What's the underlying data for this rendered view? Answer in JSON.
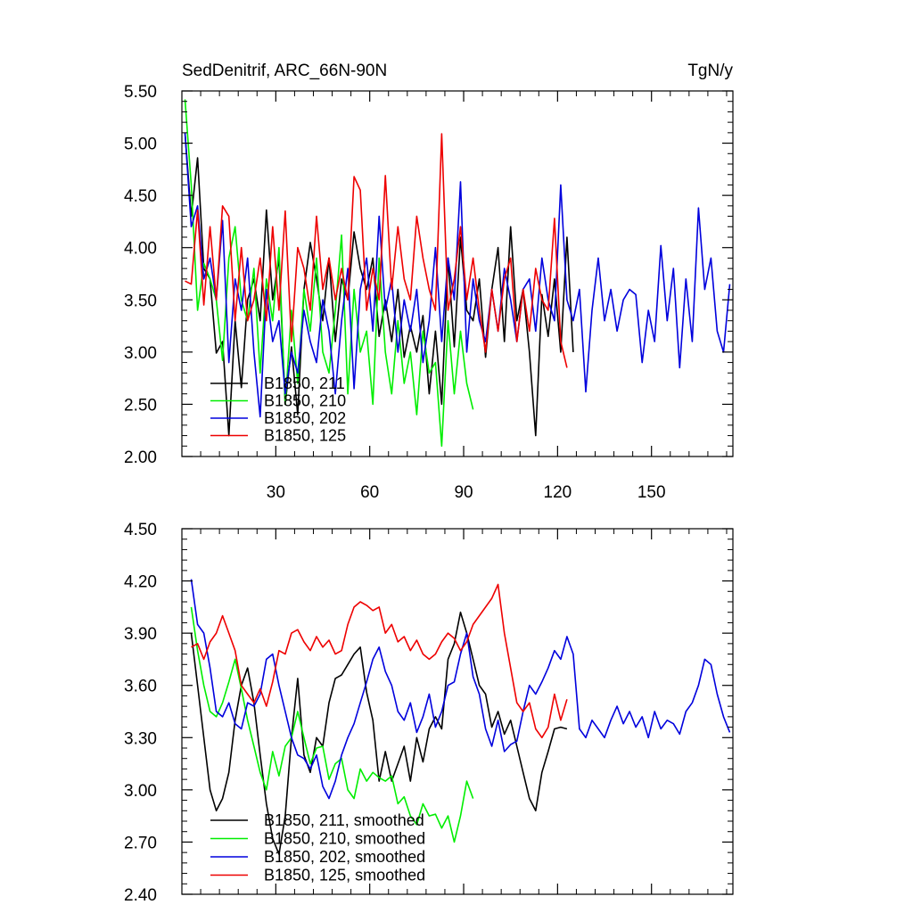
{
  "chart_data": [
    {
      "type": "line",
      "title_left": "SedDenitrif, ARC_66N-90N",
      "title_right": "TgN/y",
      "xlabel": "",
      "ylabel": "",
      "xlim": [
        0,
        176
      ],
      "ylim": [
        2.0,
        5.5
      ],
      "xticks": [
        30,
        60,
        90,
        120,
        150
      ],
      "xtick_labels": [
        "30",
        "60",
        "90",
        "120",
        "150"
      ],
      "yticks": [
        2.0,
        2.5,
        3.0,
        3.5,
        4.0,
        4.5,
        5.0,
        5.5
      ],
      "ytick_labels": [
        "2.00",
        "2.50",
        "3.00",
        "3.50",
        "4.00",
        "4.50",
        "5.00",
        "5.50"
      ],
      "legend_position": "bottom-left",
      "series": [
        {
          "name": "B1850, 211",
          "color": "#000000",
          "x": [
            1,
            3,
            5,
            7,
            9,
            11,
            13,
            15,
            17,
            19,
            21,
            23,
            25,
            27,
            29,
            31,
            33,
            35,
            37,
            39,
            41,
            43,
            45,
            47,
            49,
            51,
            53,
            55,
            57,
            59,
            61,
            63,
            65,
            67,
            69,
            71,
            73,
            75,
            77,
            79,
            81,
            83,
            85,
            87,
            89,
            91,
            93,
            95,
            97,
            99,
            101,
            103,
            105,
            107,
            109,
            111,
            113,
            115,
            117,
            119,
            121,
            123,
            125
          ],
          "y": [
            5.1,
            4.3,
            4.86,
            3.8,
            3.7,
            2.99,
            3.1,
            2.2,
            3.3,
            2.66,
            3.5,
            3.7,
            3.3,
            4.36,
            3.5,
            3.9,
            2.5,
            3.05,
            2.4,
            3.6,
            4.05,
            3.7,
            3.3,
            3.9,
            3.1,
            3.7,
            3.5,
            4.15,
            3.8,
            3.6,
            3.9,
            3.15,
            3.5,
            3.1,
            3.6,
            2.95,
            3.25,
            3.0,
            3.35,
            2.6,
            3.2,
            2.5,
            3.9,
            3.05,
            4.1,
            3.4,
            3.3,
            3.7,
            2.95,
            3.6,
            4.0,
            3.1,
            4.2,
            3.3,
            3.6,
            3.0,
            2.2,
            3.55,
            3.15,
            3.7,
            3.0,
            4.1,
            3.0
          ]
        },
        {
          "name": "B1850, 210",
          "color": "#00ee00",
          "x": [
            1,
            3,
            5,
            7,
            9,
            11,
            13,
            15,
            17,
            19,
            21,
            23,
            25,
            27,
            29,
            31,
            33,
            35,
            37,
            39,
            41,
            43,
            45,
            47,
            49,
            51,
            53,
            55,
            57,
            59,
            61,
            63,
            65,
            67,
            69,
            71,
            73,
            75,
            77,
            79,
            81,
            83,
            85,
            87,
            89,
            91,
            93
          ],
          "y": [
            5.42,
            4.6,
            3.4,
            3.85,
            3.7,
            3.5,
            2.92,
            3.9,
            4.2,
            3.5,
            3.3,
            3.8,
            2.8,
            3.7,
            3.3,
            4.0,
            2.5,
            3.4,
            2.7,
            3.6,
            3.2,
            3.9,
            3.0,
            2.8,
            3.4,
            4.12,
            2.6,
            3.6,
            3.0,
            3.2,
            2.5,
            3.9,
            3.0,
            2.6,
            3.3,
            2.7,
            3.0,
            2.4,
            3.2,
            2.8,
            2.9,
            2.1,
            3.3,
            2.6,
            3.2,
            2.7,
            2.45
          ]
        },
        {
          "name": "B1850, 202",
          "color": "#0000dd",
          "x": [
            1,
            3,
            5,
            7,
            9,
            11,
            13,
            15,
            17,
            19,
            21,
            23,
            25,
            27,
            29,
            31,
            33,
            35,
            37,
            39,
            41,
            43,
            45,
            47,
            49,
            51,
            53,
            55,
            57,
            59,
            61,
            63,
            65,
            67,
            69,
            71,
            73,
            75,
            77,
            79,
            81,
            83,
            85,
            87,
            89,
            91,
            93,
            95,
            97,
            99,
            101,
            103,
            105,
            107,
            109,
            111,
            113,
            115,
            117,
            119,
            121,
            123,
            125,
            127,
            129,
            131,
            133,
            135,
            137,
            139,
            141,
            143,
            145,
            147,
            149,
            151,
            153,
            155,
            157,
            159,
            161,
            163,
            165,
            167,
            169,
            171,
            173,
            175
          ],
          "y": [
            5.1,
            4.2,
            4.4,
            3.7,
            3.9,
            3.5,
            4.26,
            2.9,
            3.7,
            3.4,
            3.9,
            3.0,
            2.38,
            3.6,
            3.1,
            3.3,
            2.6,
            3.0,
            2.8,
            3.4,
            3.1,
            2.9,
            3.5,
            3.2,
            2.6,
            3.3,
            3.8,
            2.65,
            3.6,
            3.9,
            3.2,
            4.3,
            3.4,
            3.7,
            3.0,
            3.5,
            3.2,
            3.6,
            2.9,
            3.3,
            4.0,
            3.1,
            3.9,
            3.5,
            4.63,
            3.0,
            3.7,
            3.3,
            3.1,
            3.6,
            3.2,
            3.8,
            3.5,
            3.1,
            3.6,
            3.7,
            3.2,
            3.9,
            3.5,
            3.3,
            4.6,
            3.5,
            3.3,
            3.6,
            2.62,
            3.4,
            3.9,
            3.3,
            3.6,
            3.2,
            3.5,
            3.6,
            3.55,
            2.9,
            3.4,
            3.1,
            4.02,
            3.3,
            3.8,
            2.85,
            3.7,
            3.1,
            4.38,
            3.6,
            3.9,
            3.2,
            3.0,
            3.65
          ]
        },
        {
          "name": "B1850, 125",
          "color": "#ee0000",
          "x": [
            1,
            3,
            5,
            7,
            9,
            11,
            13,
            15,
            17,
            19,
            21,
            23,
            25,
            27,
            29,
            31,
            33,
            35,
            37,
            39,
            41,
            43,
            45,
            47,
            49,
            51,
            53,
            55,
            57,
            59,
            61,
            63,
            65,
            67,
            69,
            71,
            73,
            75,
            77,
            79,
            81,
            83,
            85,
            87,
            89,
            91,
            93,
            95,
            97,
            99,
            101,
            103,
            105,
            107,
            109,
            111,
            113,
            115,
            117,
            119,
            121,
            123
          ],
          "y": [
            3.68,
            3.65,
            4.36,
            3.45,
            4.2,
            3.5,
            4.4,
            4.3,
            3.3,
            4.0,
            3.3,
            3.5,
            3.9,
            3.3,
            4.2,
            3.4,
            4.35,
            3.1,
            4.0,
            3.8,
            3.4,
            4.3,
            3.6,
            3.9,
            3.5,
            3.8,
            3.5,
            4.68,
            4.55,
            3.4,
            3.8,
            3.5,
            4.69,
            3.6,
            4.2,
            3.7,
            3.5,
            4.3,
            3.9,
            3.6,
            3.4,
            5.09,
            3.4,
            3.7,
            4.2,
            3.5,
            3.9,
            3.4,
            3.0,
            3.6,
            3.2,
            3.7,
            3.9,
            3.1,
            3.6,
            3.2,
            3.8,
            3.5,
            3.4,
            4.28,
            3.1,
            2.85
          ]
        }
      ]
    },
    {
      "type": "line",
      "title_left": "",
      "title_right": "",
      "xlabel": "",
      "ylabel": "",
      "xlim": [
        0,
        176
      ],
      "ylim": [
        2.4,
        4.5
      ],
      "xticks": [
        30,
        60,
        90,
        120,
        150
      ],
      "xtick_labels": [],
      "yticks": [
        2.4,
        2.7,
        3.0,
        3.3,
        3.6,
        3.9,
        4.2,
        4.5
      ],
      "ytick_labels": [
        "2.40",
        "2.70",
        "3.00",
        "3.30",
        "3.60",
        "3.90",
        "4.20",
        "4.50"
      ],
      "legend_position": "bottom-left",
      "series": [
        {
          "name": "B1850, 211, smoothed",
          "color": "#000000",
          "x": [
            3,
            5,
            7,
            9,
            11,
            13,
            15,
            17,
            19,
            21,
            23,
            25,
            27,
            29,
            31,
            33,
            35,
            37,
            39,
            41,
            43,
            45,
            47,
            49,
            51,
            53,
            55,
            57,
            59,
            61,
            63,
            65,
            67,
            69,
            71,
            73,
            75,
            77,
            79,
            81,
            83,
            85,
            87,
            89,
            91,
            93,
            95,
            97,
            99,
            101,
            103,
            105,
            107,
            109,
            111,
            113,
            115,
            117,
            119,
            121,
            123
          ],
          "y": [
            3.9,
            3.6,
            3.3,
            3.0,
            2.88,
            2.95,
            3.1,
            3.4,
            3.6,
            3.7,
            3.5,
            3.2,
            2.92,
            2.72,
            2.63,
            2.85,
            3.3,
            3.64,
            3.2,
            3.1,
            3.3,
            3.25,
            3.5,
            3.64,
            3.66,
            3.72,
            3.78,
            3.82,
            3.56,
            3.4,
            3.05,
            3.22,
            3.05,
            3.15,
            3.25,
            3.05,
            3.3,
            3.16,
            3.35,
            3.42,
            3.35,
            3.75,
            3.84,
            4.02,
            3.9,
            3.75,
            3.6,
            3.55,
            3.36,
            3.45,
            3.32,
            3.4,
            3.25,
            3.1,
            2.95,
            2.88,
            3.1,
            3.22,
            3.35,
            3.36,
            3.35
          ]
        },
        {
          "name": "B1850, 210, smoothed",
          "color": "#00ee00",
          "x": [
            3,
            5,
            7,
            9,
            11,
            13,
            15,
            17,
            19,
            21,
            23,
            25,
            27,
            29,
            31,
            33,
            35,
            37,
            39,
            41,
            43,
            45,
            47,
            49,
            51,
            53,
            55,
            57,
            59,
            61,
            63,
            65,
            67,
            69,
            71,
            73,
            75,
            77,
            79,
            81,
            83,
            85,
            87,
            89,
            91,
            93
          ],
          "y": [
            4.05,
            3.8,
            3.6,
            3.45,
            3.42,
            3.5,
            3.62,
            3.75,
            3.58,
            3.4,
            3.25,
            3.1,
            3.0,
            3.22,
            3.08,
            3.25,
            3.3,
            3.45,
            3.3,
            3.15,
            3.24,
            3.25,
            3.06,
            3.15,
            3.18,
            3.0,
            2.95,
            3.12,
            3.05,
            3.1,
            3.07,
            3.05,
            3.08,
            2.92,
            2.96,
            2.85,
            2.8,
            2.92,
            2.85,
            2.86,
            2.78,
            2.85,
            2.7,
            2.85,
            3.05,
            2.95
          ]
        },
        {
          "name": "B1850, 202, smoothed",
          "color": "#0000dd",
          "x": [
            3,
            5,
            7,
            9,
            11,
            13,
            15,
            17,
            19,
            21,
            23,
            25,
            27,
            29,
            31,
            33,
            35,
            37,
            39,
            41,
            43,
            45,
            47,
            49,
            51,
            53,
            55,
            57,
            59,
            61,
            63,
            65,
            67,
            69,
            71,
            73,
            75,
            77,
            79,
            81,
            83,
            85,
            87,
            89,
            91,
            93,
            95,
            97,
            99,
            101,
            103,
            105,
            107,
            109,
            111,
            113,
            115,
            117,
            119,
            121,
            123,
            125,
            127,
            129,
            131,
            133,
            135,
            137,
            139,
            141,
            143,
            145,
            147,
            149,
            151,
            153,
            155,
            157,
            159,
            161,
            163,
            165,
            167,
            169,
            171,
            173,
            175
          ],
          "y": [
            4.21,
            3.95,
            3.9,
            3.7,
            3.45,
            3.42,
            3.5,
            3.38,
            3.35,
            3.5,
            3.48,
            3.55,
            3.75,
            3.78,
            3.6,
            3.45,
            3.3,
            3.2,
            3.18,
            3.12,
            3.2,
            3.02,
            2.95,
            3.05,
            3.2,
            3.3,
            3.38,
            3.5,
            3.62,
            3.75,
            3.82,
            3.68,
            3.6,
            3.45,
            3.4,
            3.5,
            3.33,
            3.42,
            3.55,
            3.36,
            3.45,
            3.6,
            3.62,
            3.78,
            3.9,
            3.65,
            3.55,
            3.35,
            3.25,
            3.4,
            3.22,
            3.26,
            3.28,
            3.45,
            3.6,
            3.55,
            3.62,
            3.7,
            3.8,
            3.75,
            3.88,
            3.78,
            3.35,
            3.3,
            3.4,
            3.35,
            3.3,
            3.4,
            3.48,
            3.38,
            3.45,
            3.36,
            3.42,
            3.3,
            3.45,
            3.35,
            3.4,
            3.38,
            3.32,
            3.45,
            3.5,
            3.6,
            3.75,
            3.72,
            3.55,
            3.42,
            3.33
          ]
        },
        {
          "name": "B1850, 125, smoothed",
          "color": "#ee0000",
          "x": [
            3,
            5,
            7,
            9,
            11,
            13,
            15,
            17,
            19,
            21,
            23,
            25,
            27,
            29,
            31,
            33,
            35,
            37,
            39,
            41,
            43,
            45,
            47,
            49,
            51,
            53,
            55,
            57,
            59,
            61,
            63,
            65,
            67,
            69,
            71,
            73,
            75,
            77,
            79,
            81,
            83,
            85,
            87,
            89,
            91,
            93,
            95,
            97,
            99,
            101,
            103,
            105,
            107,
            109,
            111,
            113,
            115,
            117,
            119,
            121,
            123
          ],
          "y": [
            3.82,
            3.84,
            3.75,
            3.85,
            3.9,
            4.0,
            3.9,
            3.8,
            3.6,
            3.55,
            3.5,
            3.58,
            3.48,
            3.62,
            3.8,
            3.78,
            3.9,
            3.92,
            3.85,
            3.8,
            3.88,
            3.82,
            3.86,
            3.78,
            3.8,
            3.95,
            4.05,
            4.08,
            4.06,
            4.03,
            4.05,
            3.9,
            3.95,
            3.85,
            3.88,
            3.8,
            3.86,
            3.78,
            3.75,
            3.78,
            3.85,
            3.9,
            3.87,
            3.8,
            3.85,
            3.95,
            4.0,
            4.05,
            4.1,
            4.18,
            3.9,
            3.7,
            3.5,
            3.45,
            3.5,
            3.35,
            3.3,
            3.36,
            3.55,
            3.4,
            3.52
          ]
        }
      ]
    }
  ]
}
